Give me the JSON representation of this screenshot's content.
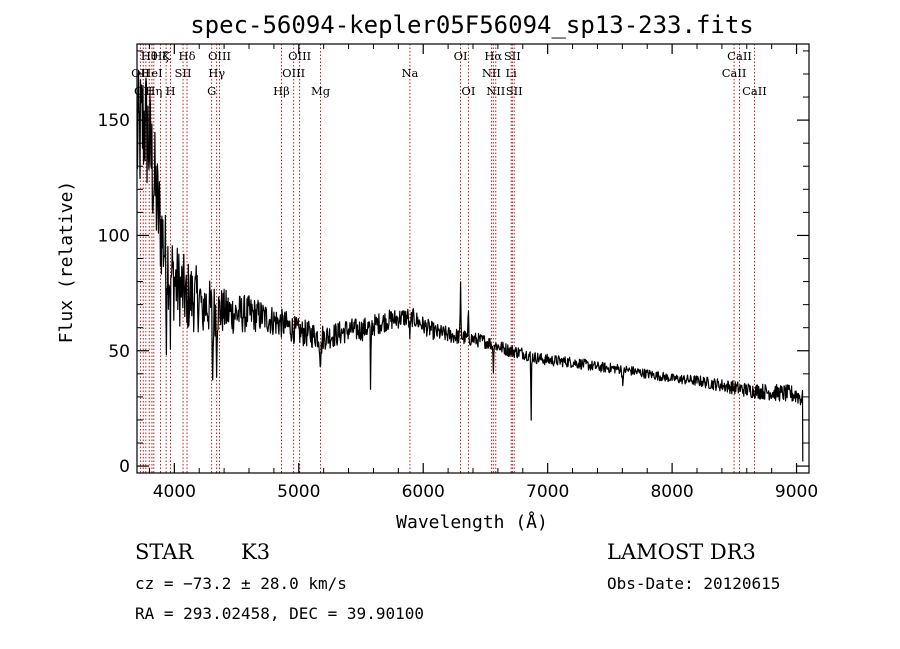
{
  "chart_data": {
    "type": "line",
    "title": "spec-56094-kepler05F56094_sp13-233.fits",
    "xlabel": "Wavelength (Å)",
    "ylabel": "Flux (relative)",
    "xlim": [
      3700,
      9100
    ],
    "ylim": [
      -3,
      183
    ],
    "xticks": [
      4000,
      5000,
      6000,
      7000,
      8000,
      9000
    ],
    "yticks": [
      0,
      50,
      100,
      150
    ],
    "x_tick_labels": [
      "4000",
      "5000",
      "6000",
      "7000",
      "8000",
      "9000"
    ],
    "y_tick_labels": [
      "0",
      "50",
      "100",
      "150"
    ],
    "grid": false,
    "continuum": [
      [
        3700,
        140
      ],
      [
        3760,
        150
      ],
      [
        3800,
        140
      ],
      [
        3850,
        118
      ],
      [
        3900,
        100
      ],
      [
        3950,
        88
      ],
      [
        4000,
        80
      ],
      [
        4100,
        74
      ],
      [
        4200,
        72
      ],
      [
        4300,
        68
      ],
      [
        4400,
        67
      ],
      [
        4500,
        66
      ],
      [
        4600,
        66
      ],
      [
        4700,
        65
      ],
      [
        4800,
        63
      ],
      [
        4900,
        61
      ],
      [
        5000,
        58
      ],
      [
        5100,
        57
      ],
      [
        5200,
        56
      ],
      [
        5300,
        57
      ],
      [
        5400,
        59
      ],
      [
        5500,
        59
      ],
      [
        5600,
        61
      ],
      [
        5700,
        63
      ],
      [
        5800,
        64
      ],
      [
        5900,
        65
      ],
      [
        6000,
        61
      ],
      [
        6100,
        58
      ],
      [
        6200,
        57
      ],
      [
        6300,
        56
      ],
      [
        6400,
        55
      ],
      [
        6500,
        54
      ],
      [
        6600,
        52
      ],
      [
        6700,
        50
      ],
      [
        6800,
        49
      ],
      [
        6900,
        47
      ],
      [
        7000,
        46
      ],
      [
        7200,
        45
      ],
      [
        7400,
        43
      ],
      [
        7600,
        42
      ],
      [
        7800,
        40
      ],
      [
        8000,
        38
      ],
      [
        8200,
        37
      ],
      [
        8400,
        35
      ],
      [
        8600,
        33
      ],
      [
        8800,
        32
      ],
      [
        9000,
        31
      ],
      [
        9050,
        29
      ]
    ],
    "noise": [
      [
        3700,
        30
      ],
      [
        3800,
        28
      ],
      [
        3900,
        22
      ],
      [
        4000,
        18
      ],
      [
        4200,
        14
      ],
      [
        4400,
        10
      ],
      [
        4700,
        7
      ],
      [
        5000,
        6
      ],
      [
        5500,
        5
      ],
      [
        6000,
        4
      ],
      [
        6500,
        3
      ],
      [
        7000,
        2.5
      ],
      [
        8000,
        2
      ],
      [
        8500,
        3
      ],
      [
        9000,
        4
      ],
      [
        9050,
        4
      ]
    ],
    "features": [
      {
        "x": 3934,
        "depth": -30,
        "width": 4
      },
      {
        "x": 3969,
        "depth": -25,
        "width": 4
      },
      {
        "x": 4101,
        "depth": -15,
        "width": 4
      },
      {
        "x": 4226,
        "depth": -18,
        "width": 4
      },
      {
        "x": 4308,
        "depth": -30,
        "width": 5
      },
      {
        "x": 4340,
        "depth": -20,
        "width": 4
      },
      {
        "x": 5175,
        "depth": -10,
        "width": 8
      },
      {
        "x": 5577,
        "depth": -35,
        "width": 3
      },
      {
        "x": 5893,
        "depth": -8,
        "width": 8
      },
      {
        "x": 6300,
        "depth": 22,
        "width": 4
      },
      {
        "x": 6363,
        "depth": 10,
        "width": 4
      },
      {
        "x": 6563,
        "depth": -10,
        "width": 4
      },
      {
        "x": 6867,
        "depth": -32,
        "width": 3
      },
      {
        "x": 7605,
        "depth": -5,
        "width": 8
      }
    ],
    "lines": [
      {
        "x": 3727,
        "label": "OII",
        "row": 1
      },
      {
        "x": 3750,
        "label": "OII",
        "row": 2
      },
      {
        "x": 3771,
        "label": "H",
        "row": 0
      },
      {
        "x": 3798,
        "label": "Hθ",
        "row": 0
      },
      {
        "x": 3820,
        "label": "HeI",
        "row": 1
      },
      {
        "x": 3835,
        "label": "Hη",
        "row": 2
      },
      {
        "x": 3889,
        "label": "Hζ",
        "row": 0
      },
      {
        "x": 3934,
        "label": "K",
        "row": 0
      },
      {
        "x": 3969,
        "label": "H",
        "row": 2
      },
      {
        "x": 4070,
        "label": "SII",
        "row": 1
      },
      {
        "x": 4102,
        "label": "Hδ",
        "row": 0
      },
      {
        "x": 4300,
        "label": "G",
        "row": 2
      },
      {
        "x": 4340,
        "label": "Hγ",
        "row": 1
      },
      {
        "x": 4363,
        "label": "OIII",
        "row": 0
      },
      {
        "x": 4861,
        "label": "Hβ",
        "row": 2
      },
      {
        "x": 4959,
        "label": "OIII",
        "row": 1
      },
      {
        "x": 5007,
        "label": "OIII",
        "row": 0
      },
      {
        "x": 5175,
        "label": "Mg",
        "row": 2
      },
      {
        "x": 5893,
        "label": "Na",
        "row": 1
      },
      {
        "x": 6300,
        "label": "OI",
        "row": 0
      },
      {
        "x": 6363,
        "label": "OI",
        "row": 2
      },
      {
        "x": 6548,
        "label": "NII",
        "row": 1
      },
      {
        "x": 6563,
        "label": "Hα",
        "row": 0
      },
      {
        "x": 6583,
        "label": "NII",
        "row": 2
      },
      {
        "x": 6707,
        "label": "Li",
        "row": 1
      },
      {
        "x": 6716,
        "label": "SII",
        "row": 0
      },
      {
        "x": 6731,
        "label": "SII",
        "row": 2
      },
      {
        "x": 8498,
        "label": "CaII",
        "row": 1
      },
      {
        "x": 8542,
        "label": "CaII",
        "row": 0
      },
      {
        "x": 8662,
        "label": "CaII",
        "row": 2
      }
    ]
  },
  "info": {
    "object_class": "STAR",
    "subclass": "K3",
    "survey": "LAMOST DR3",
    "cz": "cz = −73.2 ± 28.0 km/s",
    "obs_date": "Obs-Date: 20120615",
    "coords": "RA = 293.02458, DEC =  39.90100"
  },
  "colors": {
    "spectrum": "#000000",
    "line_markers": "#c00000",
    "axes": "#000000",
    "background": "#ffffff"
  }
}
